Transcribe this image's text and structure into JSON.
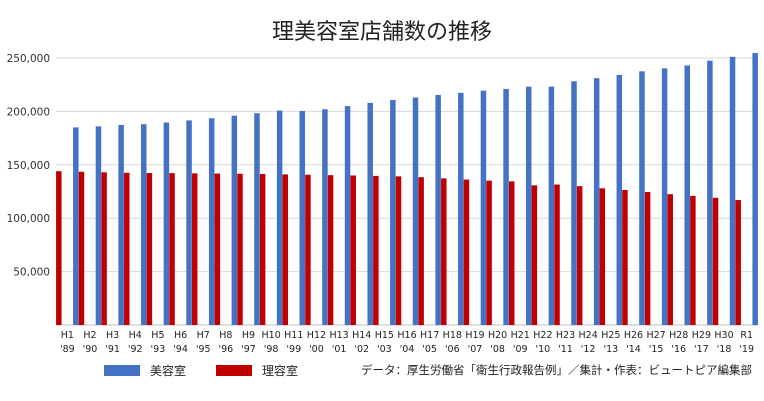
{
  "colors": {
    "beauty": "#4472c4",
    "barber": "#c00000",
    "grid": "#d9d9d9",
    "axis": "#bfbfbf"
  },
  "chart_data": {
    "type": "bar",
    "title": "理美容室店舗数の推移",
    "ylim": [
      0,
      250000
    ],
    "yticks": [
      "50,000",
      "100,000",
      "150,000",
      "200,000",
      "250,000"
    ],
    "ytick_values": [
      50000,
      100000,
      150000,
      200000,
      250000
    ],
    "grid": true,
    "legend_position": "bottom-left",
    "categories": [
      "H1",
      "H2",
      "H3",
      "H4",
      "H5",
      "H6",
      "H7",
      "H8",
      "H9",
      "H10",
      "H11",
      "H12",
      "H13",
      "H14",
      "H15",
      "H16",
      "H17",
      "H18",
      "H19",
      "H20",
      "H21",
      "H22",
      "H23",
      "H24",
      "H25",
      "H26",
      "H27",
      "H28",
      "H29",
      "H30",
      "R1"
    ],
    "categories_year": [
      "'89",
      "'90",
      "'91",
      "'92",
      "'93",
      "'94",
      "'95",
      "'96",
      "'97",
      "'98",
      "'99",
      "'00",
      "'01",
      "'02",
      "'03",
      "'04",
      "'05",
      "'06",
      "'07",
      "'08",
      "'09",
      "'10",
      "'11",
      "'12",
      "'13",
      "'14",
      "'15",
      "'16",
      "'17",
      "'18",
      "'19"
    ],
    "series": [
      {
        "name": "理容室",
        "values": [
          144000,
          143500,
          143000,
          142500,
          142300,
          142200,
          142000,
          141800,
          141600,
          141400,
          141000,
          140700,
          140300,
          140000,
          139600,
          139200,
          138400,
          137300,
          136200,
          135200,
          134500,
          130800,
          131500,
          130000,
          128000,
          126400,
          124500,
          122500,
          120900,
          119100,
          117000
        ]
      },
      {
        "name": "美容室",
        "values": [
          185000,
          186000,
          187300,
          188000,
          189600,
          191600,
          193600,
          196000,
          198300,
          200800,
          200400,
          202000,
          205000,
          208000,
          210600,
          213000,
          215400,
          217400,
          219400,
          221000,
          223200,
          223200,
          228200,
          231100,
          234200,
          237500,
          240300,
          243000,
          247500,
          251100,
          254600
        ]
      }
    ],
    "legend": [
      {
        "label": "美容室",
        "color": "#4472c4"
      },
      {
        "label": "理容室",
        "color": "#c00000"
      }
    ],
    "source": "データ：厚生労働省「衛生行政報告例」／集計・作表：ビュートピア編集部"
  }
}
